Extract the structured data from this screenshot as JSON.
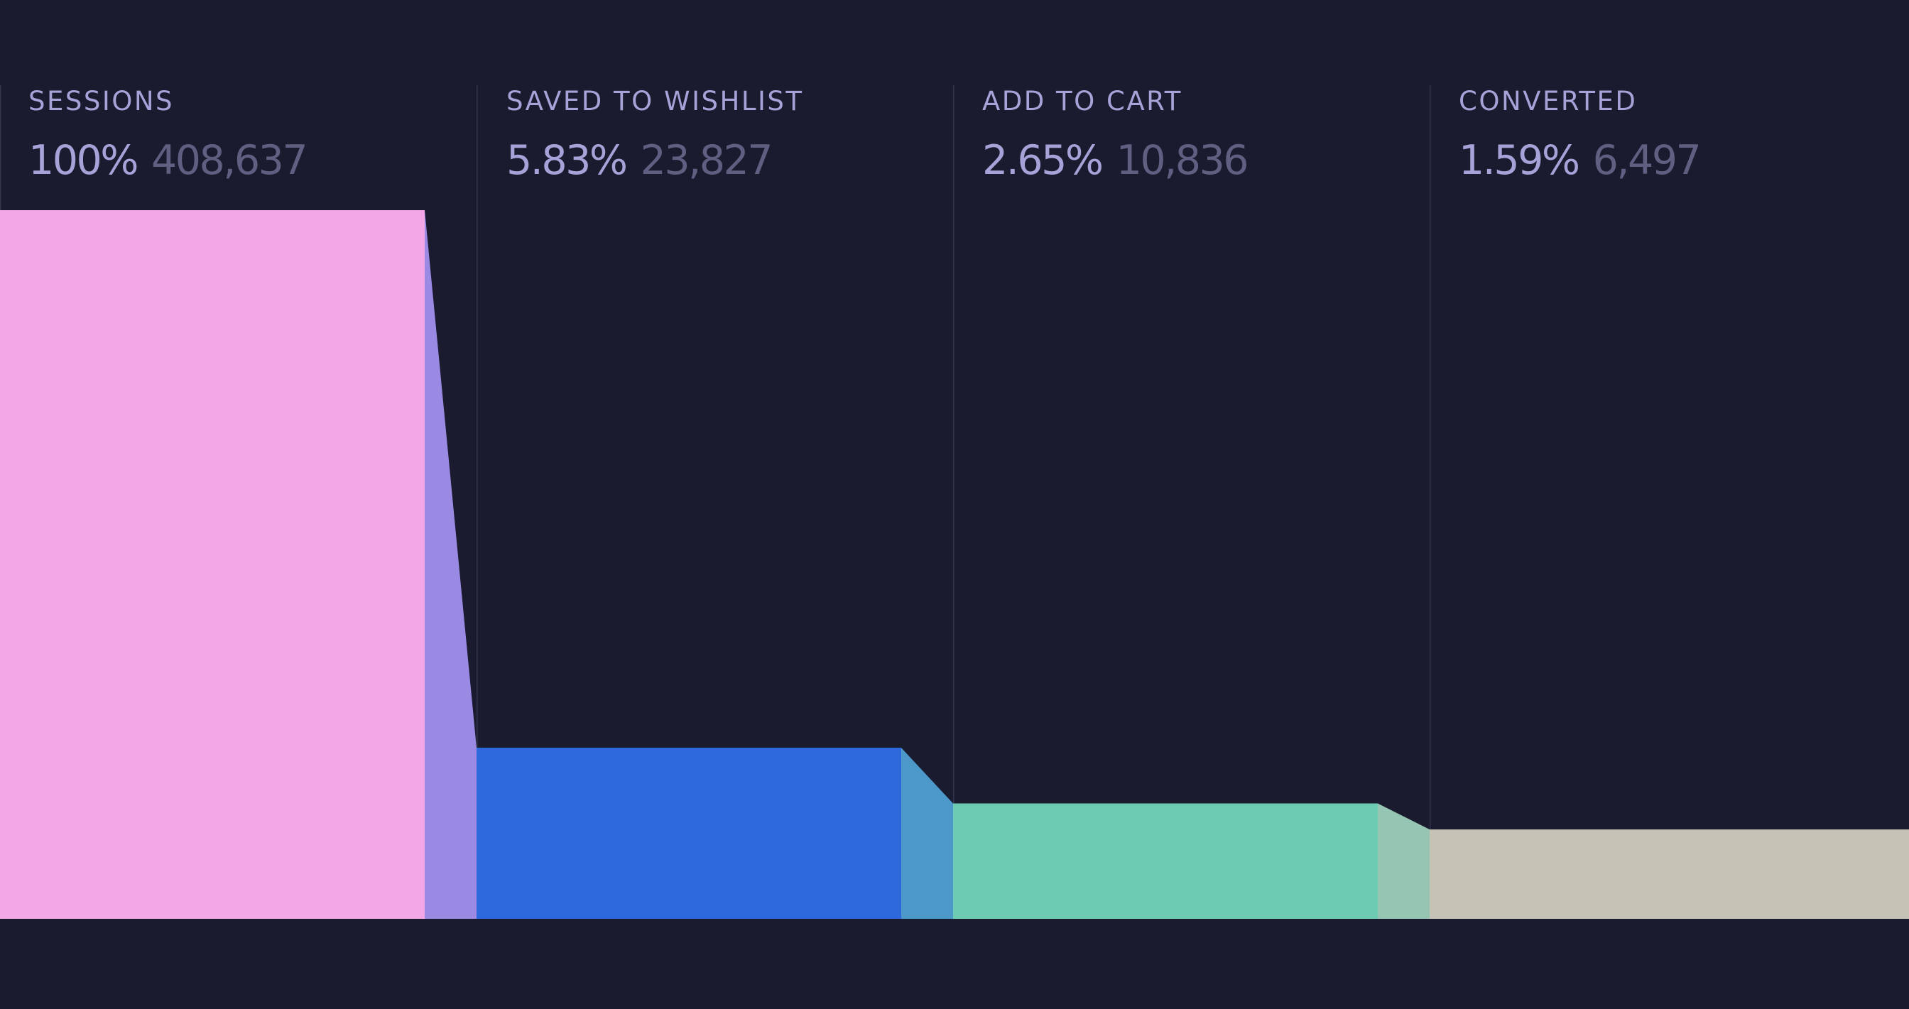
{
  "chart_data": {
    "type": "bar",
    "title": "",
    "xlabel": "",
    "ylabel": "",
    "grid": false,
    "categories": [
      "SESSIONS",
      "SAVED TO WISHLIST",
      "ADD TO CART",
      "CONVERTED"
    ],
    "stages": [
      {
        "label": "SESSIONS",
        "percent": "100%",
        "count": "408,637",
        "value": 408637,
        "color": "#f3a7e7",
        "connector_color": "#9a8ae3"
      },
      {
        "label": "SAVED TO WISHLIST",
        "percent": "5.83%",
        "count": "23,827",
        "value": 23827,
        "color": "#2d69dd",
        "connector_color": "#4c98c9"
      },
      {
        "label": "ADD TO CART",
        "percent": "2.65%",
        "count": "10,836",
        "value": 10836,
        "color": "#6ecbb3",
        "connector_color": "#96c6b3"
      },
      {
        "label": "CONVERTED",
        "percent": "1.59%",
        "count": "6,497",
        "value": 6497,
        "color": "#c5c3b5",
        "connector_color": null
      }
    ],
    "background_color": "#1a1b2f",
    "divider_color": "#33344d"
  }
}
